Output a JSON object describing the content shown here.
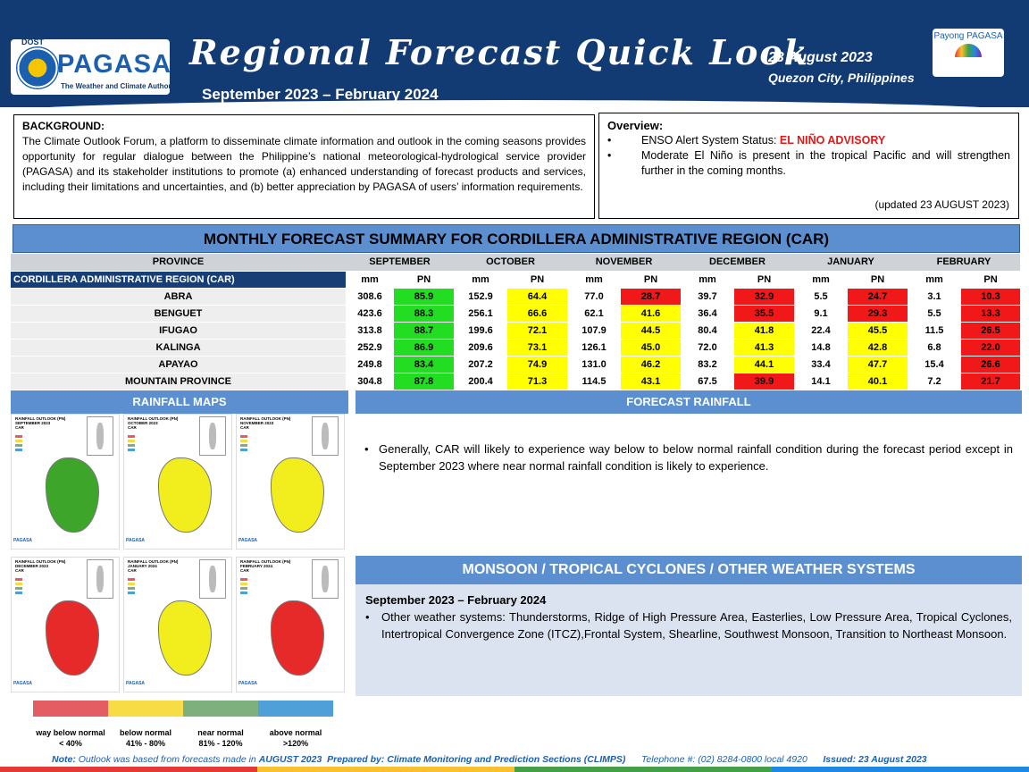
{
  "header": {
    "logo_dost": "DOST",
    "logo_name": "PAGASA",
    "logo_tagline": "The Weather and Climate Authority",
    "title": "Regional Forecast Quick Look",
    "subtitle": "September 2023 – February 2024",
    "date": "23 August 2023",
    "place": "Quezon City, Philippines",
    "payong": "Payong PAGASA"
  },
  "background": {
    "heading": "BACKGROUND:",
    "text": "The Climate Outlook Forum, a platform to disseminate climate information and outlook in the coming seasons provides opportunity for regular dialogue between the Philippine’s national meteorological-hydrological service provider (PAGASA) and its stakeholder institutions to promote (a) enhanced understanding of forecast products and services, including their limitations and uncertainties, and (b) better appreciation by PAGASA of users’ information requirements."
  },
  "overview": {
    "heading": "Overview:",
    "item1_prefix": "ENSO Alert System Status: ",
    "item1_status": "EL NIÑO ADVISORY",
    "item2": "Moderate El Niño is present in the tropical Pacific and will strengthen further in the coming months.",
    "updated": "(updated 23 AUGUST 2023)"
  },
  "summary": {
    "title": "MONTHLY FORECAST SUMMARY FOR CORDILLERA ADMINISTRATIVE REGION (CAR)",
    "province_header": "PROVINCE",
    "region_label": "CORDILLERA ADMINISTRATIVE REGION (CAR)",
    "mm_label": "mm",
    "pn_label": "PN",
    "months": [
      "SEPTEMBER",
      "OCTOBER",
      "NOVEMBER",
      "DECEMBER",
      "JANUARY",
      "FEBRUARY"
    ],
    "colors": {
      "green": "#22dd22",
      "yellow": "#ffff00",
      "red": "#f01818"
    },
    "rows": [
      {
        "province": "ABRA",
        "cells": [
          [
            "308.6",
            "85.9",
            "green"
          ],
          [
            "152.9",
            "64.4",
            "yellow"
          ],
          [
            "77.0",
            "28.7",
            "red"
          ],
          [
            "39.7",
            "32.9",
            "red"
          ],
          [
            "5.5",
            "24.7",
            "red"
          ],
          [
            "3.1",
            "10.3",
            "red"
          ]
        ]
      },
      {
        "province": "BENGUET",
        "cells": [
          [
            "423.6",
            "88.3",
            "green"
          ],
          [
            "256.1",
            "66.6",
            "yellow"
          ],
          [
            "62.1",
            "41.6",
            "yellow"
          ],
          [
            "36.4",
            "35.5",
            "red"
          ],
          [
            "9.1",
            "29.3",
            "red"
          ],
          [
            "5.5",
            "13.3",
            "red"
          ]
        ]
      },
      {
        "province": "IFUGAO",
        "cells": [
          [
            "313.8",
            "88.7",
            "green"
          ],
          [
            "199.6",
            "72.1",
            "yellow"
          ],
          [
            "107.9",
            "44.5",
            "yellow"
          ],
          [
            "80.4",
            "41.8",
            "yellow"
          ],
          [
            "22.4",
            "45.5",
            "yellow"
          ],
          [
            "11.5",
            "26.5",
            "red"
          ]
        ]
      },
      {
        "province": "KALINGA",
        "cells": [
          [
            "252.9",
            "86.9",
            "green"
          ],
          [
            "209.6",
            "73.1",
            "yellow"
          ],
          [
            "126.1",
            "45.0",
            "yellow"
          ],
          [
            "72.0",
            "41.3",
            "yellow"
          ],
          [
            "14.8",
            "42.8",
            "yellow"
          ],
          [
            "6.8",
            "22.0",
            "red"
          ]
        ]
      },
      {
        "province": "APAYAO",
        "cells": [
          [
            "249.8",
            "83.4",
            "green"
          ],
          [
            "207.2",
            "74.9",
            "yellow"
          ],
          [
            "131.0",
            "46.2",
            "yellow"
          ],
          [
            "83.2",
            "44.1",
            "yellow"
          ],
          [
            "33.4",
            "47.7",
            "yellow"
          ],
          [
            "15.4",
            "26.6",
            "red"
          ]
        ]
      },
      {
        "province": "MOUNTAIN PROVINCE",
        "cells": [
          [
            "304.8",
            "87.8",
            "green"
          ],
          [
            "200.4",
            "71.3",
            "yellow"
          ],
          [
            "114.5",
            "43.1",
            "yellow"
          ],
          [
            "67.5",
            "39.9",
            "red"
          ],
          [
            "14.1",
            "40.1",
            "yellow"
          ],
          [
            "7.2",
            "21.7",
            "red"
          ]
        ]
      }
    ]
  },
  "rainfall_maps": {
    "title": "RAINFALL MAPS",
    "maps": [
      {
        "title": "RAINFALL OUTLOOK (PN)\nSEPTEMBER 2023\nCAR",
        "color": "#3ca52a"
      },
      {
        "title": "RAINFALL OUTLOOK (PN)\nOCTOBER 2023\nCAR",
        "color": "#f2ee1e"
      },
      {
        "title": "RAINFALL OUTLOOK (PN)\nNOVEMBER 2023\nCAR",
        "color": "#f2ee1e"
      },
      {
        "title": "RAINFALL OUTLOOK (PN)\nDECEMBER 2023\nCAR",
        "color": "#e62a2a"
      },
      {
        "title": "RAINFALL OUTLOOK (PN)\nJANUARY 2024\nCAR",
        "color": "#f2ee1e"
      },
      {
        "title": "RAINFALL OUTLOOK (PN)\nFEBRUARY 2024\nCAR",
        "color": "#e62a2a"
      }
    ],
    "legend": [
      {
        "label": "way below normal",
        "range": "< 40%",
        "color": "#e35d62"
      },
      {
        "label": "below normal",
        "range": "41% - 80%",
        "color": "#f8dc45"
      },
      {
        "label": "near normal",
        "range": "81% - 120%",
        "color": "#7eb07e"
      },
      {
        "label": "above normal",
        "range": ">120%",
        "color": "#4f9fd8"
      }
    ]
  },
  "forecast_rainfall": {
    "title": "FORECAST RAINFALL",
    "text": "Generally, CAR will likely to experience way below to below normal rainfall condition during the forecast period except in September 2023 where near normal rainfall condition is likely to experience."
  },
  "monsoon": {
    "title": "MONSOON / TROPICAL CYCLONES / OTHER WEATHER SYSTEMS",
    "period": "September 2023 – February 2024",
    "text": "Other weather systems: Thunderstorms,  Ridge of High Pressure Area,  Easterlies, Low Pressure Area, Tropical Cyclones, Intertropical Convergence Zone (ITCZ),Frontal System, Shearline, Southwest Monsoon, Transition to Northeast Monsoon."
  },
  "footer": {
    "note_label": "Note:",
    "note_text": " Outlook was based from forecasts made in ",
    "note_month": "AUGUST 2023",
    "prepared": "Prepared by: Climate Monitoring and Prediction Sections (CLIMPS)",
    "telephone": "Telephone #: (02) 8284-0800 local 4920",
    "issued": "Issued: 23 August 2023"
  }
}
